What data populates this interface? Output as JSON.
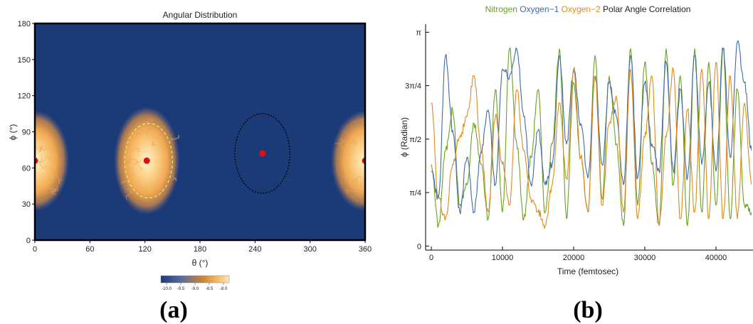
{
  "panel_labels": [
    "(a)",
    "(b)"
  ],
  "colors": {
    "background_map": "#1b3a78",
    "nitrogen": "#6aa122",
    "oxygen1": "#3f6aa8",
    "oxygen2": "#e08a1e",
    "marker": "#e01010",
    "ellipse_dash": "#e8e86a"
  },
  "chart_data": [
    {
      "type": "heatmap",
      "title": "Angular Distribution",
      "xlabel": "θ (°)",
      "ylabel": "ϕ (°)",
      "xlim": [
        0,
        360
      ],
      "ylim": [
        0,
        180
      ],
      "x_ticks": [
        "0",
        "60",
        "120",
        "180",
        "240",
        "300",
        "360"
      ],
      "y_ticks": [
        "0",
        "30",
        "60",
        "90",
        "120",
        "150",
        "180"
      ],
      "colorbar": {
        "ticks": [
          "-10.0",
          "-9.5",
          "-9.0",
          "-8.5",
          "-8.0"
        ],
        "range": [
          -10.2,
          -7.8
        ],
        "colors": [
          "#1b3a78",
          "#5a6aa0",
          "#c8823a",
          "#f2b45c",
          "#fde8b8"
        ]
      },
      "clusters": [
        {
          "theta": 0,
          "phi": 66,
          "spread_theta": 25,
          "spread_phi": 28
        },
        {
          "theta": 122,
          "phi": 66,
          "spread_theta": 24,
          "spread_phi": 30
        },
        {
          "theta": 360,
          "phi": 66,
          "spread_theta": 25,
          "spread_phi": 28
        }
      ],
      "markers": [
        {
          "theta": 0,
          "phi": 66
        },
        {
          "theta": 122,
          "phi": 66
        },
        {
          "theta": 248,
          "phi": 72
        },
        {
          "theta": 360,
          "phi": 66
        }
      ],
      "ellipses": [
        {
          "theta": 124,
          "phi": 66,
          "r_theta": 26,
          "r_phi": 31,
          "style": "yellow-dashed"
        },
        {
          "theta": 248,
          "phi": 72,
          "r_theta": 30,
          "r_phi": 33,
          "style": "black-dotted"
        }
      ]
    },
    {
      "type": "line",
      "title_parts": [
        {
          "text": "Nitrogen ",
          "color": "#6aa122"
        },
        {
          "text": "Oxygen−1 ",
          "color": "#3f6aa8"
        },
        {
          "text": "Oxygen−2 ",
          "color": "#e08a1e"
        },
        {
          "text": "Polar Angle Correlation",
          "color": "#222222"
        }
      ],
      "xlabel": "Time (femtosec)",
      "ylabel": "ϕ (Radian)",
      "xlim": [
        -800,
        45200
      ],
      "ylim": [
        -0.06,
        3.26
      ],
      "x_ticks": [
        0,
        10000,
        20000,
        30000,
        40000
      ],
      "x_tick_labels": [
        "0",
        "10000",
        "20000",
        "30000",
        "40000"
      ],
      "y_ticks": [
        0,
        0.7854,
        1.5708,
        2.3562,
        3.1416
      ],
      "y_tick_labels": [
        "0",
        "π/4",
        "π/2",
        "3π/4",
        "π"
      ],
      "series": [
        {
          "name": "Nitrogen",
          "color": "#6aa122",
          "x": [
            0,
            1000,
            2000,
            3000,
            4000,
            5000,
            6000,
            7000,
            8000,
            9000,
            10000,
            11000,
            12000,
            13000,
            14000,
            15000,
            16000,
            17000,
            18000,
            19000,
            20000,
            21000,
            22000,
            23000,
            24000,
            25000,
            26000,
            27000,
            28000,
            29000,
            30000,
            31000,
            32000,
            33000,
            34000,
            35000,
            36000,
            37000,
            38000,
            39000,
            40000,
            41000,
            42000,
            43000,
            44000,
            45000
          ],
          "values": [
            1.2,
            0.3,
            1.4,
            2.0,
            0.6,
            0.9,
            1.8,
            1.2,
            0.4,
            2.3,
            0.5,
            2.9,
            1.5,
            0.4,
            1.3,
            2.3,
            0.5,
            1.5,
            2.9,
            0.4,
            2.4,
            1.3,
            0.5,
            2.8,
            0.7,
            2.5,
            1.5,
            0.3,
            2.9,
            0.6,
            2.7,
            1.2,
            0.3,
            2.9,
            0.9,
            2.5,
            0.3,
            2.9,
            0.5,
            2.7,
            0.6,
            2.9,
            0.4,
            2.3,
            0.6,
            0.5
          ]
        },
        {
          "name": "Oxygen−1",
          "color": "#3f6aa8",
          "x": [
            0,
            1000,
            2000,
            3000,
            4000,
            5000,
            6000,
            7000,
            8000,
            9000,
            10000,
            11000,
            12000,
            13000,
            14000,
            15000,
            16000,
            17000,
            18000,
            19000,
            20000,
            21000,
            22000,
            23000,
            24000,
            25000,
            26000,
            27000,
            28000,
            29000,
            30000,
            31000,
            32000,
            33000,
            34000,
            35000,
            36000,
            37000,
            38000,
            39000,
            40000,
            41000,
            42000,
            43000,
            44000,
            45000
          ],
          "values": [
            1.1,
            0.7,
            2.8,
            1.7,
            0.5,
            1.3,
            0.5,
            1.4,
            2.0,
            0.9,
            2.6,
            2.5,
            2.9,
            1.9,
            0.9,
            1.7,
            0.9,
            1.2,
            2.8,
            1.5,
            2.6,
            1.8,
            1.0,
            2.5,
            1.2,
            2.4,
            1.9,
            0.9,
            2.8,
            1.0,
            2.4,
            1.5,
            1.1,
            2.7,
            1.1,
            2.3,
            1.0,
            2.8,
            1.2,
            2.4,
            1.1,
            2.9,
            1.3,
            3.0,
            2.4,
            1.4
          ]
        },
        {
          "name": "Oxygen−2",
          "color": "#e08a1e",
          "x": [
            0,
            1000,
            2000,
            3000,
            4000,
            5000,
            6000,
            7000,
            8000,
            9000,
            10000,
            11000,
            12000,
            13000,
            14000,
            15000,
            16000,
            17000,
            18000,
            19000,
            20000,
            21000,
            22000,
            23000,
            24000,
            25000,
            26000,
            27000,
            28000,
            29000,
            30000,
            31000,
            32000,
            33000,
            34000,
            35000,
            36000,
            37000,
            38000,
            39000,
            40000,
            41000,
            42000,
            43000,
            44000,
            45000
          ],
          "values": [
            2.1,
            0.7,
            0.4,
            1.2,
            1.6,
            1.9,
            2.5,
            1.4,
            0.5,
            1.9,
            1.2,
            0.6,
            2.3,
            1.4,
            0.7,
            0.5,
            0.3,
            0.9,
            2.1,
            1.0,
            2.6,
            1.3,
            0.5,
            2.5,
            0.6,
            1.8,
            2.2,
            0.5,
            2.6,
            0.4,
            1.6,
            2.5,
            0.3,
            1.6,
            2.6,
            0.4,
            2.0,
            0.5,
            2.6,
            0.4,
            2.7,
            0.4,
            2.5,
            0.4,
            2.1,
            0.9
          ]
        }
      ]
    }
  ]
}
